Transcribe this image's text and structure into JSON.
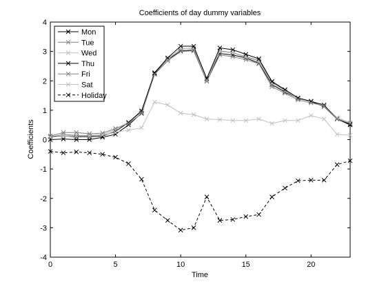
{
  "chart_data": {
    "type": "line",
    "title": "Coefficients of day dummy variables",
    "xlabel": "Time",
    "ylabel": "Coefficients",
    "xlim": [
      0,
      23
    ],
    "ylim": [
      -4,
      4
    ],
    "x_ticks": [
      0,
      5,
      10,
      15,
      20
    ],
    "y_ticks": [
      -4,
      -3,
      -2,
      -1,
      0,
      1,
      2,
      3,
      4
    ],
    "grid": false,
    "legend_position": "top-left",
    "marker": "x",
    "x": [
      0,
      1,
      2,
      3,
      4,
      5,
      6,
      7,
      8,
      9,
      10,
      11,
      12,
      13,
      14,
      15,
      16,
      17,
      18,
      19,
      20,
      21,
      22,
      23
    ],
    "series": [
      {
        "name": "Mon",
        "color": "#000000",
        "dash": "solid",
        "values": [
          0.0,
          0.02,
          0.0,
          0.0,
          0.08,
          0.18,
          0.5,
          0.9,
          2.25,
          2.72,
          3.02,
          3.05,
          2.02,
          2.93,
          2.88,
          2.78,
          2.6,
          1.87,
          1.62,
          1.4,
          1.3,
          1.12,
          0.7,
          0.52
        ]
      },
      {
        "name": "Tue",
        "color": "#808080",
        "dash": "solid",
        "values": [
          0.08,
          0.18,
          0.14,
          0.14,
          0.16,
          0.35,
          0.58,
          0.95,
          2.28,
          2.75,
          3.08,
          3.12,
          2.06,
          3.02,
          2.96,
          2.82,
          2.7,
          1.95,
          1.68,
          1.38,
          1.32,
          1.12,
          0.72,
          0.55
        ]
      },
      {
        "name": "Wed",
        "color": "#c0c0c0",
        "dash": "solid",
        "values": [
          0.08,
          0.16,
          0.12,
          0.12,
          0.16,
          0.35,
          0.6,
          0.98,
          2.22,
          2.72,
          3.1,
          3.1,
          2.02,
          3.0,
          2.95,
          2.8,
          2.66,
          1.9,
          1.65,
          1.4,
          1.32,
          1.15,
          0.75,
          0.58
        ]
      },
      {
        "name": "Thu",
        "color": "#000000",
        "dash": "solid",
        "values": [
          0.1,
          0.12,
          0.1,
          0.1,
          0.12,
          0.28,
          0.58,
          0.98,
          2.28,
          2.78,
          3.18,
          3.18,
          2.08,
          3.12,
          3.06,
          2.9,
          2.75,
          1.98,
          1.7,
          1.42,
          1.3,
          1.18,
          0.7,
          0.5
        ]
      },
      {
        "name": "Fri",
        "color": "#808080",
        "dash": "solid",
        "values": [
          0.12,
          0.24,
          0.24,
          0.2,
          0.22,
          0.38,
          0.55,
          0.88,
          2.22,
          2.68,
          3.0,
          3.02,
          1.98,
          2.88,
          2.82,
          2.72,
          2.58,
          1.8,
          1.58,
          1.35,
          1.25,
          1.15,
          0.7,
          0.55
        ]
      },
      {
        "name": "Sat",
        "color": "#c0c0c0",
        "dash": "solid",
        "values": [
          0.08,
          0.12,
          0.12,
          0.12,
          0.15,
          0.25,
          0.32,
          0.4,
          1.28,
          1.18,
          0.9,
          0.85,
          0.7,
          0.68,
          0.65,
          0.65,
          0.7,
          0.55,
          0.65,
          0.65,
          0.82,
          0.7,
          0.18,
          0.15
        ]
      },
      {
        "name": "Holiday",
        "color": "#000000",
        "dash": "dashed",
        "values": [
          -0.4,
          -0.45,
          -0.42,
          -0.45,
          -0.5,
          -0.6,
          -0.82,
          -1.35,
          -2.4,
          -2.75,
          -3.08,
          -3.0,
          -1.95,
          -2.75,
          -2.72,
          -2.62,
          -2.55,
          -1.95,
          -1.65,
          -1.4,
          -1.38,
          -1.38,
          -0.85,
          -0.72
        ]
      }
    ]
  }
}
